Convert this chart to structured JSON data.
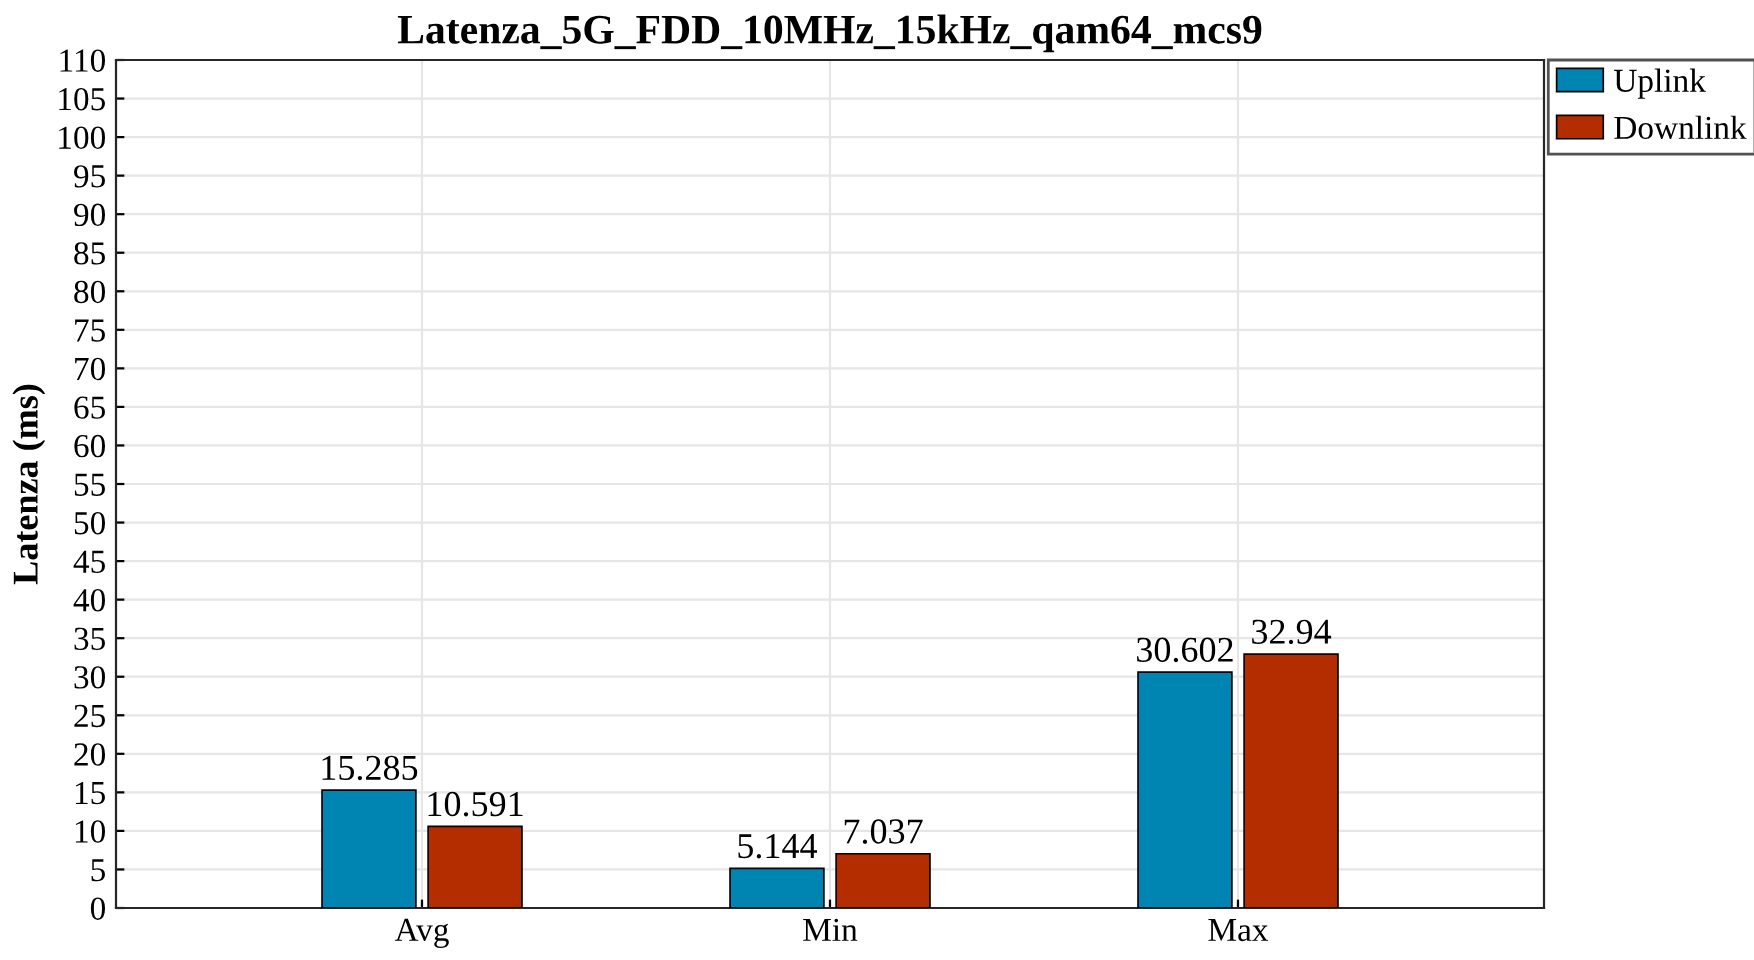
{
  "chart_data": {
    "type": "bar",
    "title": "Latenza_5G_FDD_10MHz_15kHz_qam64_mcs9",
    "ylabel": "Latenza (ms)",
    "categories": [
      "Avg",
      "Min",
      "Max"
    ],
    "series": [
      {
        "name": "Uplink",
        "color": "#0085b3",
        "values": [
          15.285,
          5.144,
          30.602
        ]
      },
      {
        "name": "Downlink",
        "color": "#b32d00",
        "values": [
          10.591,
          7.037,
          32.94
        ]
      }
    ],
    "ylim": [
      0,
      110
    ],
    "yticks": [
      0,
      5,
      10,
      15,
      20,
      25,
      30,
      35,
      40,
      45,
      50,
      55,
      60,
      65,
      70,
      75,
      80,
      85,
      90,
      95,
      100,
      105,
      110
    ],
    "grid": true,
    "legend": "top right",
    "data_labels": true
  }
}
